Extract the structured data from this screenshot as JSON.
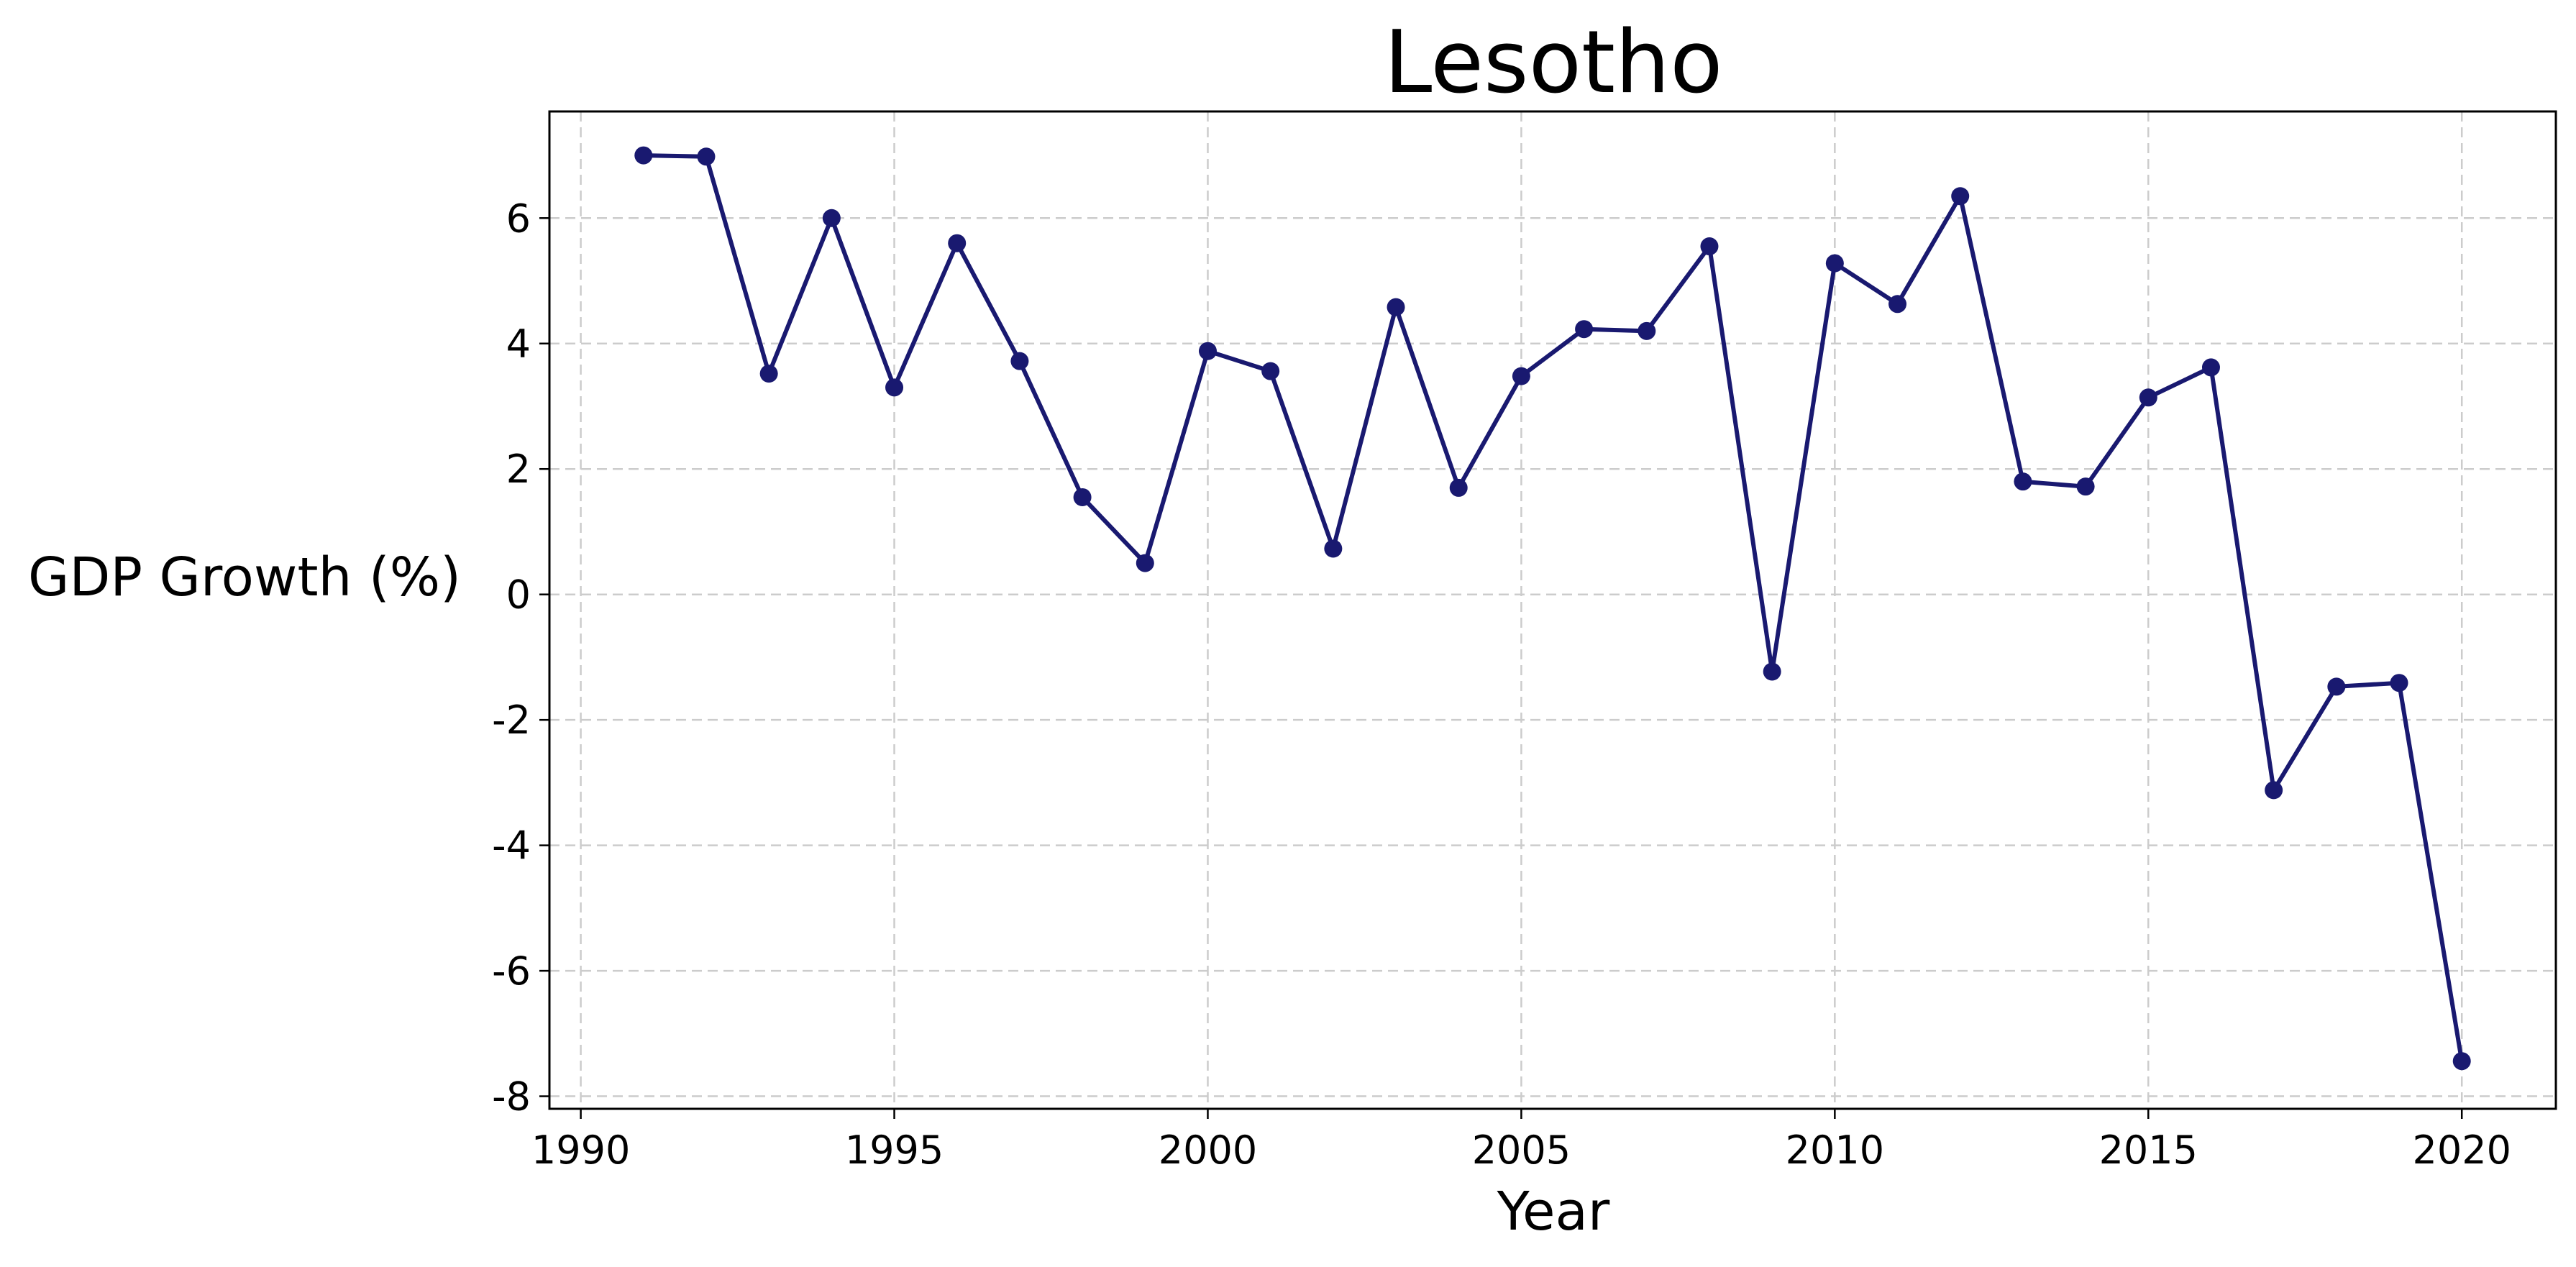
{
  "chart_data": {
    "type": "line",
    "title": "Lesotho",
    "xlabel": "Year",
    "ylabel": "GDP Growth (%)",
    "xlim": [
      1989.5,
      2021.5
    ],
    "ylim": [
      -8.2,
      7.7
    ],
    "xticks": [
      1990,
      1995,
      2000,
      2005,
      2010,
      2015,
      2020
    ],
    "yticks": [
      -8,
      -6,
      -4,
      -2,
      0,
      2,
      4,
      6
    ],
    "grid": true,
    "legend": "none",
    "color": "#191970",
    "x": [
      1991,
      1992,
      1993,
      1994,
      1995,
      1996,
      1997,
      1998,
      1999,
      2000,
      2001,
      2002,
      2003,
      2004,
      2005,
      2006,
      2007,
      2008,
      2009,
      2010,
      2011,
      2012,
      2013,
      2014,
      2015,
      2016,
      2017,
      2018,
      2019,
      2020
    ],
    "y": [
      7.0,
      6.98,
      3.52,
      6.0,
      3.3,
      5.6,
      3.72,
      1.55,
      0.5,
      3.88,
      3.56,
      0.73,
      4.58,
      1.7,
      3.48,
      4.23,
      4.2,
      5.55,
      -1.23,
      5.28,
      4.63,
      6.35,
      1.8,
      1.72,
      3.14,
      3.62,
      -3.12,
      -1.47,
      -1.41,
      -7.44
    ]
  }
}
